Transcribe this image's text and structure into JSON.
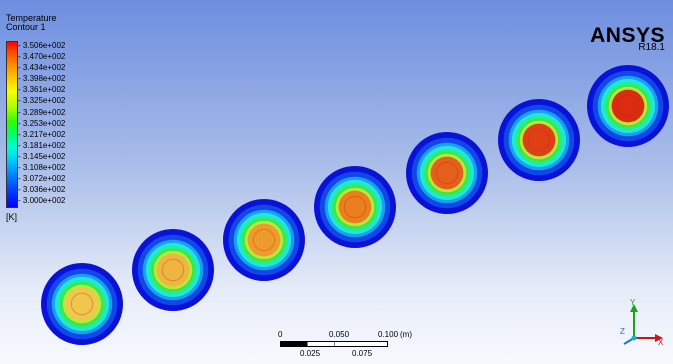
{
  "legend": {
    "title_line1": "Temperature",
    "title_line2": "Contour 1",
    "labels": [
      "3.506e+002",
      "3.470e+002",
      "3.434e+002",
      "3.398e+002",
      "3.361e+002",
      "3.325e+002",
      "3.289e+002",
      "3.253e+002",
      "3.217e+002",
      "3.181e+002",
      "3.145e+002",
      "3.108e+002",
      "3.072e+002",
      "3.036e+002",
      "3.000e+002"
    ],
    "unit": "[K]"
  },
  "logo": {
    "brand": "ANSYS",
    "version": "R18.1"
  },
  "scale": {
    "t0": "0",
    "t050": "0.050",
    "t100": "0.100",
    "unit": "(m)",
    "t025": "0.025",
    "t075": "0.075"
  },
  "axes": {
    "y": "Y",
    "x": "X",
    "z": "Z"
  },
  "contours": [
    {
      "core_color": "#f0c64f"
    },
    {
      "core_color": "#f0b441"
    },
    {
      "core_color": "#ef9a2c"
    },
    {
      "core_color": "#ec7e20"
    },
    {
      "core_color": "#e65f1c"
    },
    {
      "core_color": "#e03f16"
    },
    {
      "core_color": "#dd2b12"
    }
  ]
}
